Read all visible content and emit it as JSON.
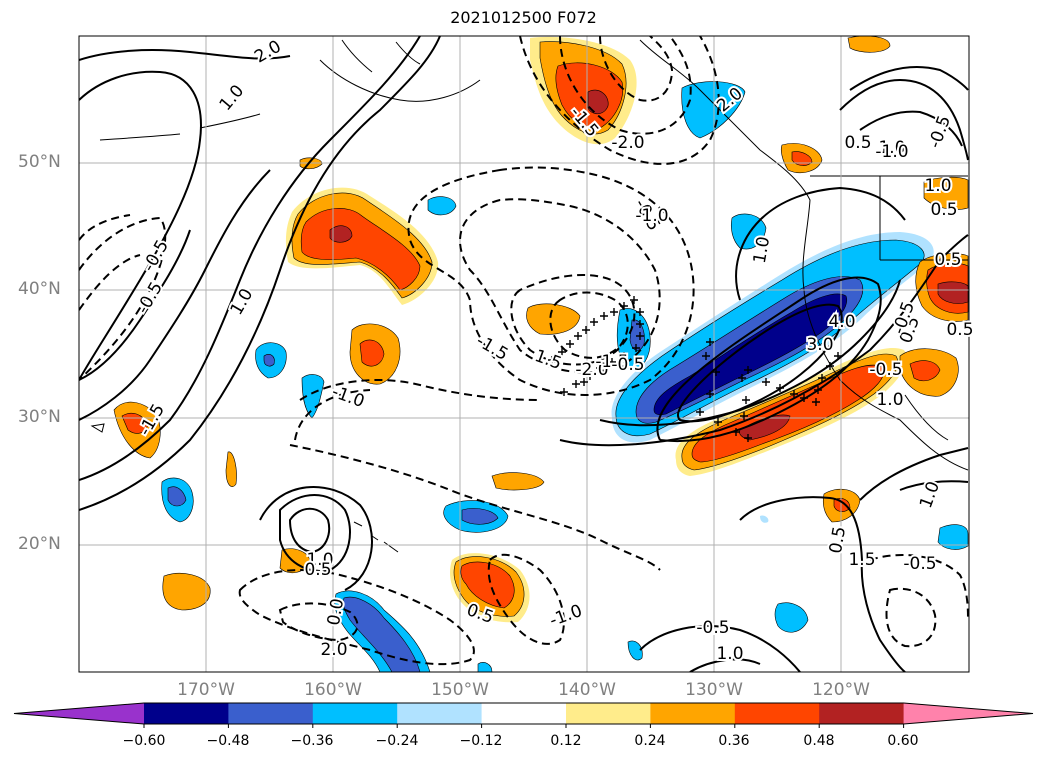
{
  "title": "2021012500 F072",
  "map": {
    "lat_labels": [
      "50°N",
      "40°N",
      "30°N",
      "20°N"
    ],
    "lon_labels": [
      "170°W",
      "160°W",
      "150°W",
      "140°W",
      "130°W",
      "120°W"
    ],
    "contour_labels": [
      "2.0",
      "1.0",
      "-1.5",
      "-2.0",
      "1.5",
      "2.0",
      "1.0",
      "0.5",
      "1.0",
      "-0.5",
      "-0.5",
      "-0.5",
      "0.5",
      "1.0",
      "-0.5",
      "-1.5",
      "-2.0",
      "-1.5",
      "-1.5",
      "1.0",
      "3.0",
      "4.0",
      "1.0",
      "-1.0",
      "0.5",
      "1.5",
      "1.0",
      "2.0",
      "-1.0",
      "0.5",
      "0.0",
      "-0.5",
      "-1.0",
      "-0.5",
      "0.5",
      "-0.5",
      "1.0",
      "0.5",
      "-1.0",
      "0.5",
      "1.0",
      "-0.5",
      "0.5",
      "-0.5"
    ]
  },
  "colorbar": {
    "ticks": [
      "−0.60",
      "−0.48",
      "−0.36",
      "−0.24",
      "−0.12",
      "0.12",
      "0.24",
      "0.36",
      "0.48",
      "0.60"
    ],
    "colors": [
      "#9932cc",
      "#00008b",
      "#3a5fcd",
      "#00bfff",
      "#b0e2ff",
      "#ffffff",
      "#ffec8b",
      "#ffa500",
      "#ff4500",
      "#b22222",
      "#ff82ab"
    ]
  },
  "colors": {
    "frame": "#000000",
    "grid": "#b0b0b0",
    "label": "#808080"
  }
}
